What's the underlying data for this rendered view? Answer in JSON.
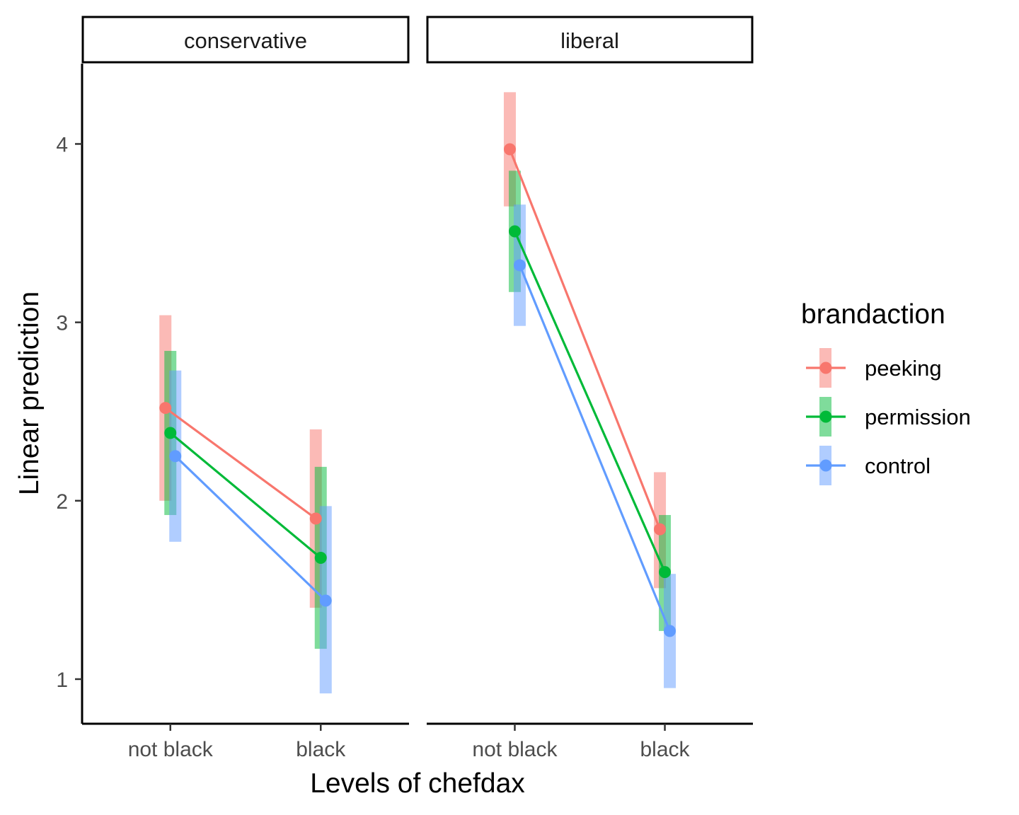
{
  "chart_data": {
    "type": "line",
    "xlabel": "Levels of chefdax",
    "ylabel": "Linear prediction",
    "ylim": [
      0.75,
      4.45
    ],
    "yticks": [
      1,
      2,
      3,
      4
    ],
    "categories": [
      "not black",
      "black"
    ],
    "legend": {
      "title": "brandaction",
      "position": "right"
    },
    "grid": false,
    "panels": [
      {
        "label": "conservative",
        "series": [
          {
            "name": "peeking",
            "color": "#F8766D",
            "values": [
              2.52,
              1.9
            ],
            "lower": [
              2.0,
              1.4
            ],
            "upper": [
              3.04,
              2.4
            ]
          },
          {
            "name": "permission",
            "color": "#00BA38",
            "values": [
              2.38,
              1.68
            ],
            "lower": [
              1.92,
              1.17
            ],
            "upper": [
              2.84,
              2.19
            ]
          },
          {
            "name": "control",
            "color": "#619CFF",
            "values": [
              2.25,
              1.44
            ],
            "lower": [
              1.77,
              0.92
            ],
            "upper": [
              2.73,
              1.97
            ]
          }
        ]
      },
      {
        "label": "liberal",
        "series": [
          {
            "name": "peeking",
            "color": "#F8766D",
            "values": [
              3.97,
              1.84
            ],
            "lower": [
              3.65,
              1.51
            ],
            "upper": [
              4.29,
              2.16
            ]
          },
          {
            "name": "permission",
            "color": "#00BA38",
            "values": [
              3.51,
              1.6
            ],
            "lower": [
              3.17,
              1.27
            ],
            "upper": [
              3.85,
              1.92
            ]
          },
          {
            "name": "control",
            "color": "#619CFF",
            "values": [
              3.32,
              1.27
            ],
            "lower": [
              2.98,
              0.95
            ],
            "upper": [
              3.66,
              1.59
            ]
          }
        ]
      }
    ]
  }
}
